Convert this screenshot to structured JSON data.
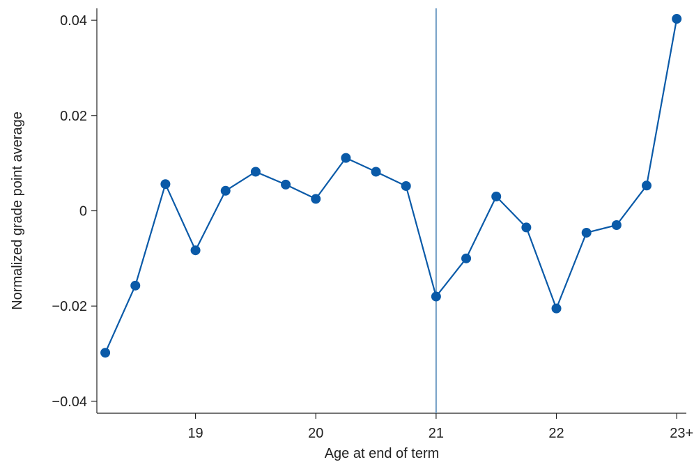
{
  "chart_data": {
    "type": "line",
    "xlabel": "Age at end of term",
    "ylabel": "Normalized grade point average",
    "xlim": [
      18.18,
      23.08
    ],
    "ylim": [
      -0.0425,
      0.0425
    ],
    "grid": false,
    "x_ticks": [
      {
        "value": 19,
        "label": "19"
      },
      {
        "value": 20,
        "label": "20"
      },
      {
        "value": 21,
        "label": "21"
      },
      {
        "value": 22,
        "label": "22"
      },
      {
        "value": 23,
        "label": "23+"
      }
    ],
    "y_ticks": [
      {
        "value": 0.04,
        "label": "0.04"
      },
      {
        "value": 0.02,
        "label": "0.02"
      },
      {
        "value": 0,
        "label": "0"
      },
      {
        "value": -0.02,
        "label": "−0.02"
      },
      {
        "value": -0.04,
        "label": "−0.04"
      }
    ],
    "reference_line_x": 21,
    "series": [
      {
        "x": [
          18.25,
          18.5,
          18.75,
          19.0,
          19.25,
          19.5,
          19.75,
          20.0,
          20.25,
          20.5,
          20.75,
          21.0,
          21.25,
          21.5,
          21.75,
          22.0,
          22.25,
          22.5,
          22.75,
          23.0
        ],
        "y": [
          -0.0298,
          -0.0157,
          0.0056,
          -0.0083,
          0.0042,
          0.0082,
          0.0055,
          0.0025,
          0.0111,
          0.0082,
          0.0052,
          -0.018,
          -0.01,
          0.003,
          -0.0035,
          -0.0205,
          -0.0046,
          -0.003,
          0.0053,
          0.0403
        ]
      }
    ],
    "colors": {
      "series": "#0a5aa8",
      "reference_line": "#6f9cc4",
      "axis": "#222222"
    }
  }
}
